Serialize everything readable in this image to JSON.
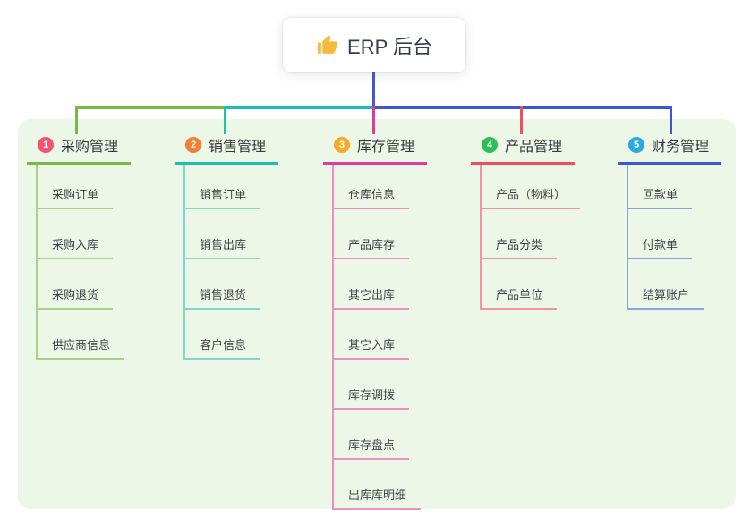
{
  "root": {
    "icon": "thumbs-up",
    "label": "ERP 后台"
  },
  "connectors": {
    "stem_color": "#4a55d2",
    "segment_colors": [
      "#7ab648",
      "#1bbfae",
      "#3c57d2"
    ]
  },
  "panel_color": "#ecf7e7",
  "branches": [
    {
      "badge": "1",
      "label": "采购管理",
      "color": "#7ab648",
      "light_color": "#a9d289",
      "badge_color": "#f0566e",
      "children": [
        "采购订单",
        "采购入库",
        "采购退货",
        "供应商信息"
      ]
    },
    {
      "badge": "2",
      "label": "销售管理",
      "color": "#1bbfae",
      "light_color": "#82d6cb",
      "badge_color": "#f57e35",
      "children": [
        "销售订单",
        "销售出库",
        "销售退货",
        "客户信息"
      ]
    },
    {
      "badge": "3",
      "label": "库存管理",
      "color": "#e13a9d",
      "light_color": "#f08cc6",
      "badge_color": "#f7a928",
      "children": [
        "仓库信息",
        "产品库存",
        "其它出库",
        "其它入库",
        "库存调拨",
        "库存盘点",
        "出库库明细"
      ]
    },
    {
      "badge": "4",
      "label": "产品管理",
      "color": "#f04e5e",
      "light_color": "#f5939b",
      "badge_color": "#2dbf53",
      "children": [
        "产品（物料）",
        "产品分类",
        "产品单位"
      ]
    },
    {
      "badge": "5",
      "label": "财务管理",
      "color": "#3c57d2",
      "light_color": "#8aa0e4",
      "badge_color": "#2ca8e2",
      "children": [
        "回款单",
        "付款单",
        "结算账户"
      ]
    }
  ]
}
